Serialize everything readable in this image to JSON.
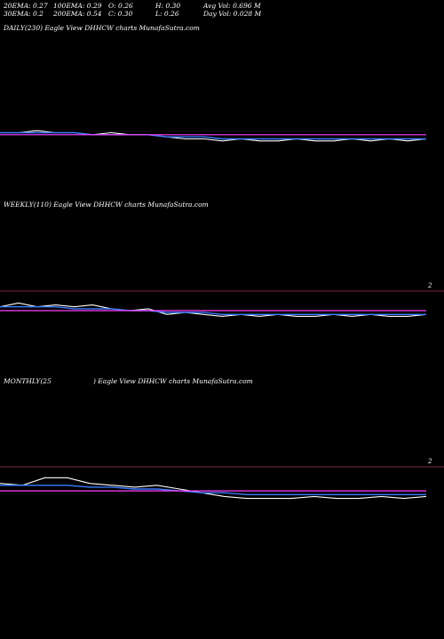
{
  "stats": {
    "row1": [
      "20EMA: 0.27",
      "100EMA: 0.29",
      "O: 0.26",
      "H: 0.30",
      "Avg Vol: 0.696  M"
    ],
    "row2": [
      "30EMA: 0.2",
      "200EMA: 0.54",
      "C: 0.30",
      "L: 0.26",
      "Day Vol: 0.028 M"
    ]
  },
  "panels": {
    "daily_label": "DAILY(230) Eagle   View  DHHCW charts MunafaSutra.com",
    "weekly_label": "WEEKLY(110) Eagle   View  DHHCW charts MunafaSutra.com",
    "monthly_label_a": "MONTHLY(25",
    "monthly_label_b": ") Eagle   View  DHHCW charts MunafaSutra.com",
    "weekly_right": "2",
    "monthly_right": "2"
  },
  "chart_data": [
    {
      "type": "line",
      "series": [
        {
          "values": [
            0.3,
            0.3,
            0.31,
            0.3,
            0.3,
            0.29,
            0.3,
            0.29,
            0.29,
            0.28,
            0.27,
            0.27,
            0.26,
            0.27,
            0.26,
            0.26,
            0.27,
            0.26,
            0.26,
            0.27,
            0.26,
            0.27,
            0.26,
            0.27
          ]
        },
        {
          "values": [
            0.3,
            0.3,
            0.3,
            0.3,
            0.3,
            0.29,
            0.29,
            0.29,
            0.29,
            0.28,
            0.28,
            0.28,
            0.27,
            0.27,
            0.27,
            0.27,
            0.27,
            0.27,
            0.27,
            0.27,
            0.27,
            0.27,
            0.27,
            0.27
          ]
        },
        {
          "values": [
            0.29,
            0.29,
            0.29,
            0.29,
            0.29,
            0.29,
            0.29,
            0.29,
            0.29,
            0.29,
            0.29,
            0.29,
            0.29,
            0.29,
            0.29,
            0.29,
            0.29,
            0.29,
            0.29,
            0.29,
            0.29,
            0.29,
            0.29,
            0.29
          ]
        }
      ]
    },
    {
      "type": "line",
      "series": [
        {
          "values": [
            0.31,
            0.33,
            0.31,
            0.32,
            0.31,
            0.32,
            0.3,
            0.29,
            0.3,
            0.27,
            0.28,
            0.27,
            0.26,
            0.27,
            0.26,
            0.27,
            0.26,
            0.26,
            0.27,
            0.26,
            0.27,
            0.26,
            0.26,
            0.27
          ]
        },
        {
          "values": [
            0.31,
            0.31,
            0.31,
            0.31,
            0.3,
            0.3,
            0.3,
            0.29,
            0.29,
            0.28,
            0.28,
            0.28,
            0.27,
            0.27,
            0.27,
            0.27,
            0.27,
            0.27,
            0.27,
            0.27,
            0.27,
            0.27,
            0.27,
            0.27
          ]
        },
        {
          "values": [
            0.29,
            0.29,
            0.29,
            0.29,
            0.29,
            0.29,
            0.29,
            0.29,
            0.29,
            0.29,
            0.29,
            0.29,
            0.29,
            0.29,
            0.29,
            0.29,
            0.29,
            0.29,
            0.29,
            0.29,
            0.29,
            0.29,
            0.29,
            0.29
          ]
        }
      ]
    },
    {
      "type": "line",
      "series": [
        {
          "values": [
            0.34,
            0.33,
            0.37,
            0.37,
            0.34,
            0.33,
            0.32,
            0.33,
            0.31,
            0.29,
            0.27,
            0.26,
            0.26,
            0.26,
            0.27,
            0.26,
            0.26,
            0.27,
            0.26,
            0.27
          ]
        },
        {
          "values": [
            0.33,
            0.33,
            0.33,
            0.33,
            0.32,
            0.32,
            0.31,
            0.31,
            0.3,
            0.29,
            0.29,
            0.28,
            0.28,
            0.28,
            0.28,
            0.28,
            0.28,
            0.28,
            0.28,
            0.28
          ]
        },
        {
          "values": [
            0.3,
            0.3,
            0.3,
            0.3,
            0.3,
            0.3,
            0.3,
            0.3,
            0.3,
            0.3,
            0.3,
            0.3,
            0.3,
            0.3,
            0.3,
            0.3,
            0.3,
            0.3,
            0.3,
            0.3
          ]
        }
      ]
    }
  ]
}
